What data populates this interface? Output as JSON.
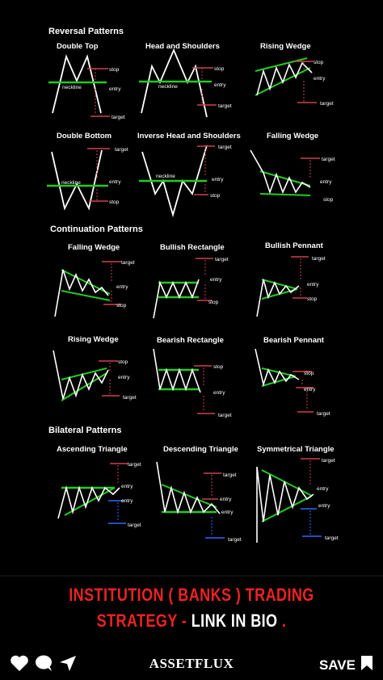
{
  "sections": {
    "reversal": "Reversal Patterns",
    "continuation": "Continuation Patterns",
    "bilateral": "Bilateral Patterns"
  },
  "patterns": [
    {
      "title": "Double Top",
      "labels": [
        "stop",
        "neckline",
        "entry",
        "target"
      ]
    },
    {
      "title": "Head and Shoulders",
      "labels": [
        "stop",
        "neckline",
        "entry",
        "target"
      ]
    },
    {
      "title": "Rising Wedge",
      "labels": [
        "stop",
        "entry",
        "target"
      ]
    },
    {
      "title": "Double Bottom",
      "labels": [
        "target",
        "neckline",
        "entry",
        "stop"
      ]
    },
    {
      "title": "Inverse Head and Shoulders",
      "labels": [
        "target",
        "neckline",
        "entry",
        "stop"
      ]
    },
    {
      "title": "Falling Wedge",
      "labels": [
        "target",
        "entry",
        "stop"
      ]
    },
    {
      "title": "Falling Wedge",
      "labels": [
        "target",
        "entry",
        "stop"
      ]
    },
    {
      "title": "Bullish Rectangle",
      "labels": [
        "target",
        "entry",
        "stop"
      ]
    },
    {
      "title": "Bullish Pennant",
      "labels": [
        "target",
        "entry",
        "stop"
      ]
    },
    {
      "title": "Rising Wedge",
      "labels": [
        "stop",
        "entry",
        "target"
      ]
    },
    {
      "title": "Bearish Rectangle",
      "labels": [
        "stop",
        "entry",
        "target"
      ]
    },
    {
      "title": "Bearish Pennant",
      "labels": [
        "stop",
        "entry",
        "target"
      ]
    },
    {
      "title": "Ascending Triangle",
      "labels": [
        "target",
        "entry",
        "entry",
        "target"
      ]
    },
    {
      "title": "Descending Triangle",
      "labels": [
        "target",
        "entry",
        "entry",
        "target"
      ]
    },
    {
      "title": "Symmetrical Triangle",
      "labels": [
        "target",
        "entry",
        "entry",
        "target"
      ]
    }
  ],
  "banner": {
    "line1": "INSTITUTION ( BANKS ) TRADING",
    "line2_red": "STRATEGY - ",
    "line2_white": "LINK IN BIO",
    "line2_end": " ."
  },
  "bottom": {
    "brand": "ASSETFLUX",
    "save": "SAVE",
    "icons": [
      "heart-icon",
      "comment-icon",
      "send-icon",
      "bookmark-icon"
    ]
  },
  "colors": {
    "background": "#000000",
    "trend_green": "#22cc22",
    "dashed_red": "#d04050",
    "dashed_blue": "#3366ff",
    "banner_red": "#ee2222"
  }
}
